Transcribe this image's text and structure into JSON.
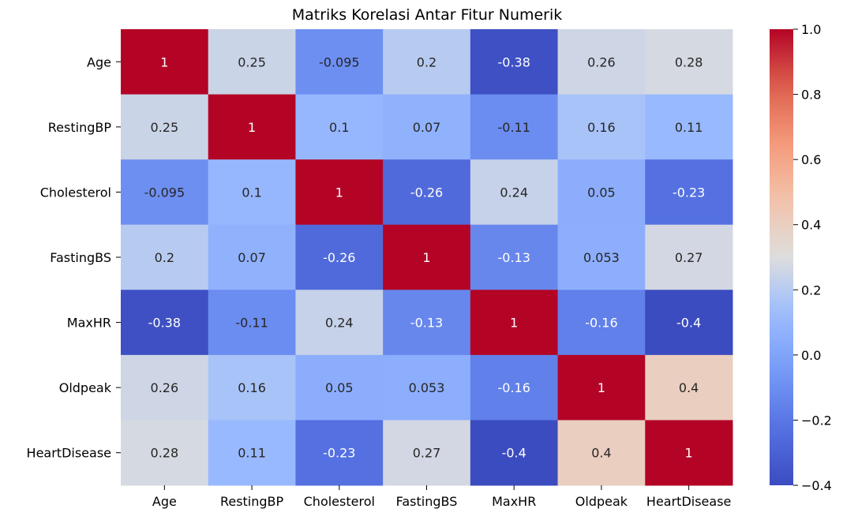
{
  "chart_data": {
    "type": "heatmap",
    "title": "Matriks Korelasi Antar Fitur Numerik",
    "xlabel": "",
    "ylabel": "",
    "row_labels": [
      "Age",
      "RestingBP",
      "Cholesterol",
      "FastingBS",
      "MaxHR",
      "Oldpeak",
      "HeartDisease"
    ],
    "col_labels": [
      "Age",
      "RestingBP",
      "Cholesterol",
      "FastingBS",
      "MaxHR",
      "Oldpeak",
      "HeartDisease"
    ],
    "values": [
      [
        1,
        0.25,
        -0.095,
        0.2,
        -0.38,
        0.26,
        0.28
      ],
      [
        0.25,
        1,
        0.1,
        0.07,
        -0.11,
        0.16,
        0.11
      ],
      [
        -0.095,
        0.1,
        1,
        -0.26,
        0.24,
        0.05,
        -0.23
      ],
      [
        0.2,
        0.07,
        -0.26,
        1,
        -0.13,
        0.053,
        0.27
      ],
      [
        -0.38,
        -0.11,
        0.24,
        -0.13,
        1,
        -0.16,
        -0.4
      ],
      [
        0.26,
        0.16,
        0.05,
        0.053,
        -0.16,
        1,
        0.4
      ],
      [
        0.28,
        0.11,
        -0.23,
        0.27,
        -0.4,
        0.4,
        1
      ]
    ],
    "cell_labels": [
      [
        "1",
        "0.25",
        "-0.095",
        "0.2",
        "-0.38",
        "0.26",
        "0.28"
      ],
      [
        "0.25",
        "1",
        "0.1",
        "0.07",
        "-0.11",
        "0.16",
        "0.11"
      ],
      [
        "-0.095",
        "0.1",
        "1",
        "-0.26",
        "0.24",
        "0.05",
        "-0.23"
      ],
      [
        "0.2",
        "0.07",
        "-0.26",
        "1",
        "-0.13",
        "0.053",
        "0.27"
      ],
      [
        "-0.38",
        "-0.11",
        "0.24",
        "-0.13",
        "1",
        "-0.16",
        "-0.4"
      ],
      [
        "0.26",
        "0.16",
        "0.05",
        "0.053",
        "-0.16",
        "1",
        "0.4"
      ],
      [
        "0.28",
        "0.11",
        "-0.23",
        "0.27",
        "-0.4",
        "0.4",
        "1"
      ]
    ],
    "colormap": "coolwarm",
    "colorbar": {
      "range": [
        -0.4,
        1.0
      ],
      "ticks": [
        1.0,
        0.8,
        0.6,
        0.4,
        0.2,
        0.0,
        -0.2,
        -0.4
      ],
      "tick_labels": [
        "1.0",
        "0.8",
        "0.6",
        "0.4",
        "0.2",
        "0.0",
        "−0.2",
        "−0.4"
      ],
      "placement": "right"
    },
    "grid": false
  }
}
